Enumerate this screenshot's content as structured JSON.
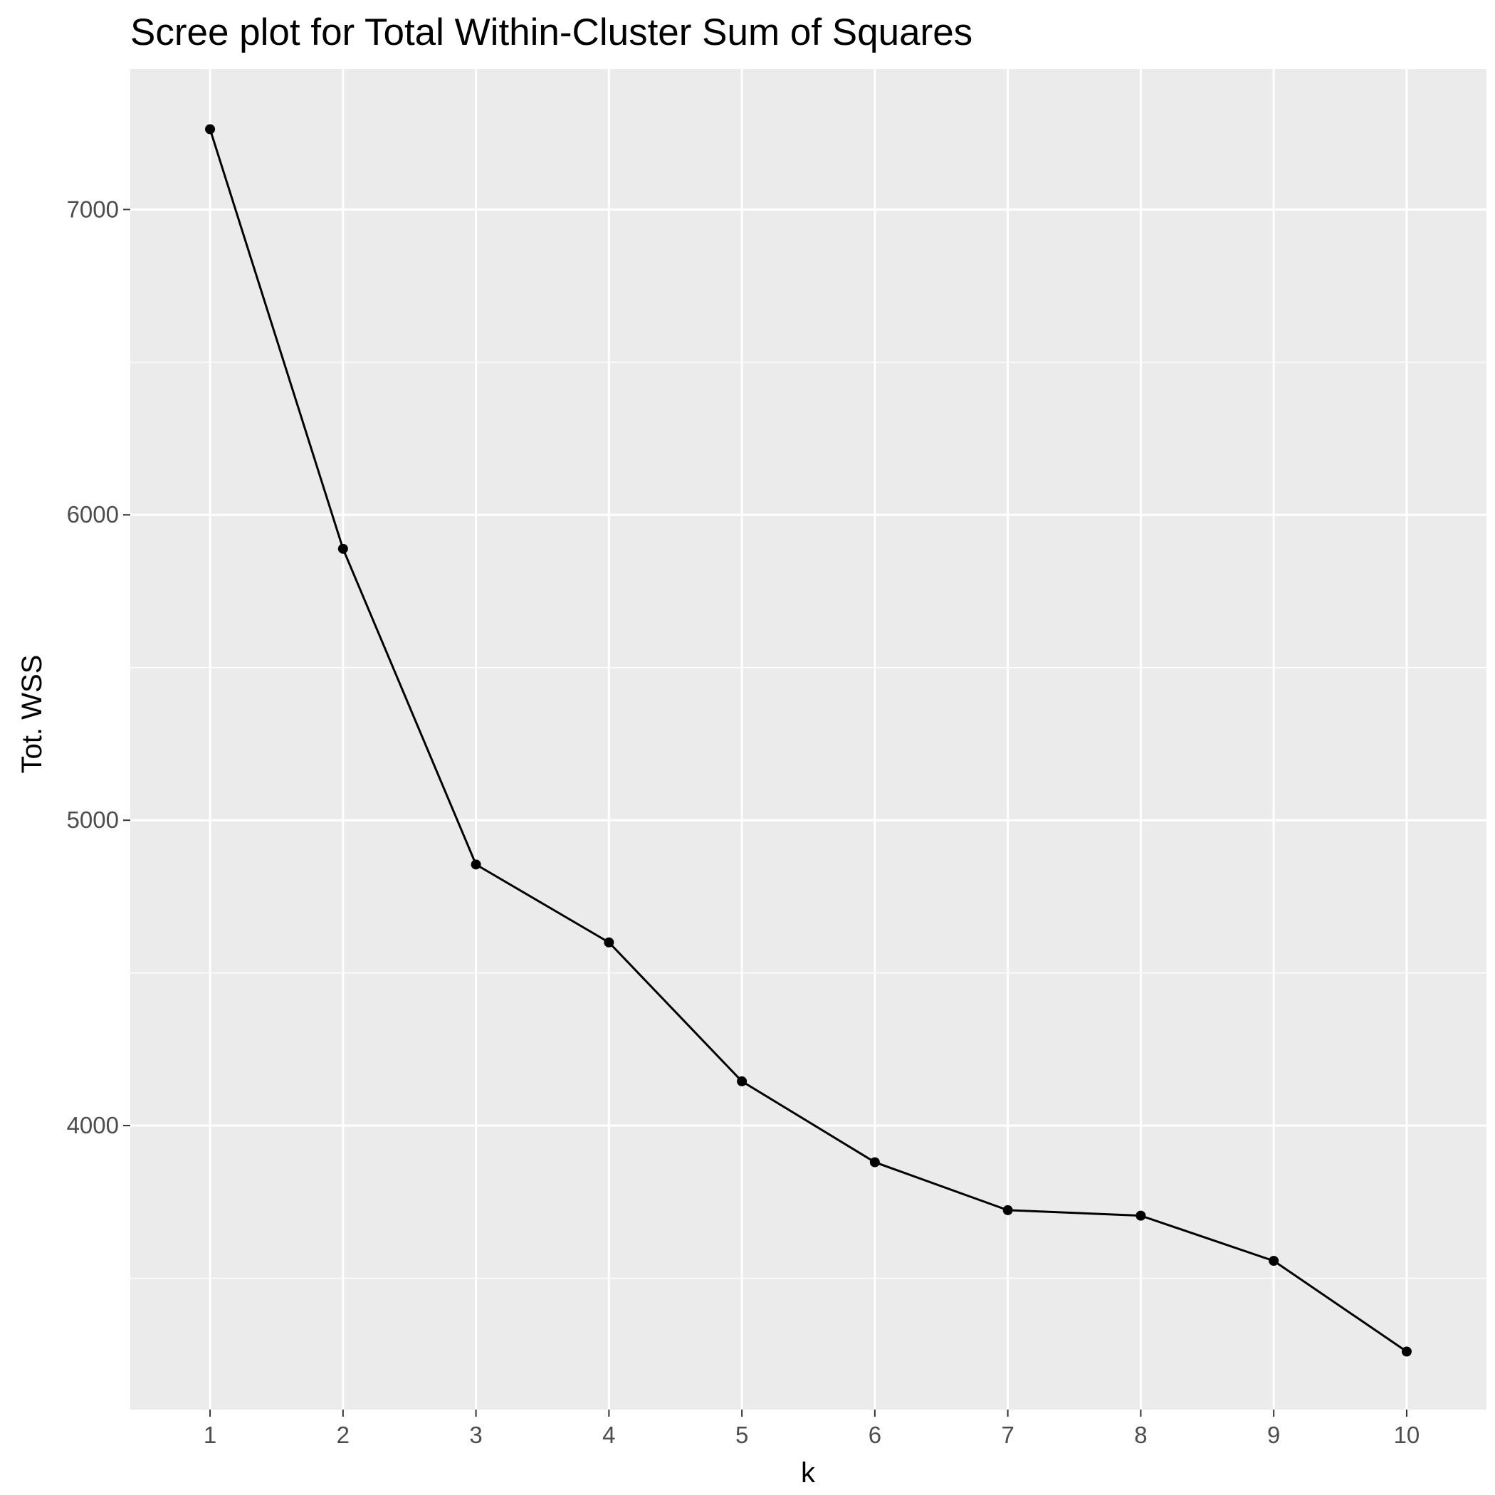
{
  "chart_data": {
    "type": "line",
    "title": "Scree plot for Total Within-Cluster Sum of Squares",
    "xlabel": "k",
    "ylabel": "Tot. WSS",
    "x": [
      1,
      2,
      3,
      4,
      5,
      6,
      7,
      8,
      9,
      10
    ],
    "series": [
      {
        "values": [
          7263,
          5889,
          4855,
          4600,
          4145,
          3880,
          3723,
          3705,
          3557,
          3260
        ]
      }
    ],
    "x_ticks": [
      "1",
      "2",
      "3",
      "4",
      "5",
      "6",
      "7",
      "8",
      "9",
      "10"
    ],
    "y_ticks": [
      "4000",
      "5000",
      "6000",
      "7000"
    ],
    "y_tick_values": [
      4000,
      5000,
      6000,
      7000
    ],
    "y_minor_values": [
      3500,
      4500,
      5500,
      6500
    ],
    "xlim": [
      0.4,
      10.6
    ],
    "ylim": [
      3070,
      7460
    ],
    "grid": true,
    "panel_background": "#ebebeb",
    "grid_color": "#ffffff",
    "line_color": "#000000",
    "point_color": "#000000"
  }
}
